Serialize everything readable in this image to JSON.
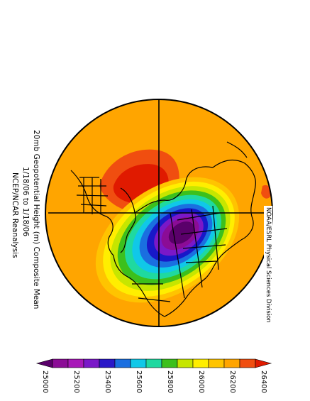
{
  "title": {
    "lines": [
      "20mb Geopotential Height (m) Composite Mean",
      "1/18/06  to  1/18/06",
      "NCEP/NCAR Reanalysis"
    ]
  },
  "credit": "NOAA/ESRL Physical Sciences Division",
  "map": {
    "projection": "north-polar-stereographic",
    "variable": "20mb geopotential height",
    "fill_colors": {
      "background": "#ffa500",
      "deep_red": "#e01a00",
      "red": "#f04e10",
      "orange": "#ffa500",
      "gold": "#ffc400",
      "yellow": "#ffee00",
      "yellow_green": "#c6e600",
      "green": "#3cc01c",
      "teal": "#1fd9a0",
      "cyan": "#10c8e8",
      "blue": "#1a6fe0",
      "indigo": "#1818c8",
      "violet": "#7a18c8",
      "purple": "#8b0c96",
      "deep_purple": "#5a006a"
    }
  },
  "colorbar": {
    "colors": [
      "#5a006a",
      "#8b0c96",
      "#a818b8",
      "#7a18c8",
      "#2a18c8",
      "#1a6fe0",
      "#10c8e8",
      "#1fd9a0",
      "#3cc01c",
      "#c6e600",
      "#ffee00",
      "#ffc400",
      "#ffa500",
      "#f04e10",
      "#e01a00"
    ],
    "tick_labels": [
      "25000",
      "25200",
      "25400",
      "25600",
      "25800",
      "26000",
      "26200",
      "26400"
    ]
  }
}
